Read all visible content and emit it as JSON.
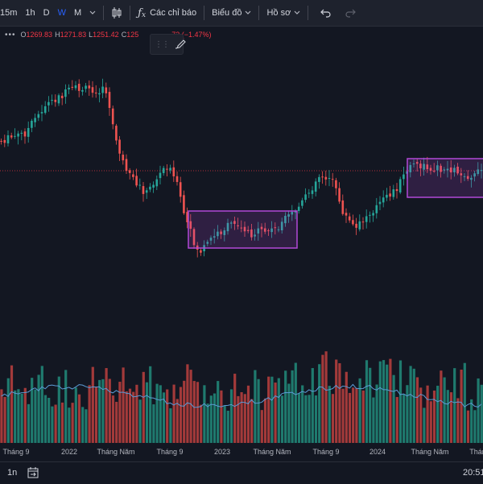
{
  "toolbar": {
    "intervals": [
      "15m",
      "1h",
      "D",
      "W",
      "M"
    ],
    "active_interval": "W",
    "indicators_label": "Các chỉ báo",
    "chart_type_label": "Biểu đồ",
    "profile_label": "Hồ sơ"
  },
  "legend": {
    "o_key": "O",
    "o_val": "1269.83",
    "h_key": "H",
    "h_val": "1271.83",
    "l_key": "L",
    "l_val": "1251.42",
    "c_key": "C",
    "c_val": "125",
    "change_val": "73 (−1.47%)"
  },
  "colors": {
    "up": "#26a69a",
    "down": "#ef5350",
    "volume_up": "#1f7a6e",
    "volume_down": "#a33a3a",
    "ma_line": "#5b9bd5",
    "box": "#b248d8",
    "price_line": "#f23645",
    "accent": "#2962ff"
  },
  "x_axis_labels": [
    "Tháng 9",
    "2022",
    "Tháng Năm",
    "Tháng 9",
    "2023",
    "Tháng Năm",
    "Tháng 9",
    "2024",
    "Tháng Năm",
    "Tháng"
  ],
  "bottom": {
    "range_label": "1n",
    "time_label": "20:51"
  },
  "icons": {
    "compare": "candles-icon",
    "indicators": "fx-icon",
    "undo": "undo-icon",
    "redo": "redo-icon",
    "drawing": "brush-icon",
    "date_range": "calendar-icon"
  }
}
